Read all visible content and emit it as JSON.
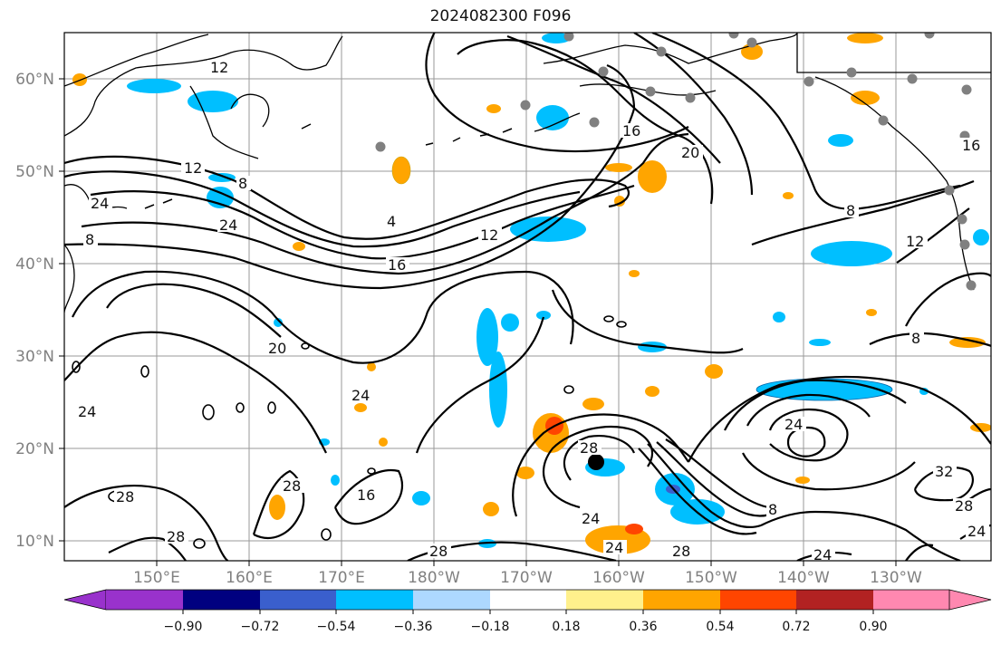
{
  "title": "2024082300 F096",
  "map": {
    "lat_labels": [
      "60°N",
      "50°N",
      "40°N",
      "30°N",
      "20°N",
      "10°N"
    ],
    "lon_labels": [
      "150°E",
      "160°E",
      "170°E",
      "180°W",
      "170°W",
      "160°W",
      "150°W",
      "140°W",
      "130°W"
    ],
    "contour_labels": [
      "12",
      "12",
      "8",
      "24",
      "24",
      "8",
      "4",
      "12",
      "16",
      "16",
      "20",
      "8",
      "12",
      "16",
      "8",
      "20",
      "24",
      "24",
      "28",
      "28",
      "28",
      "16",
      "28",
      "24",
      "24",
      "28",
      "24",
      "8",
      "32",
      "28",
      "24",
      "24",
      "28"
    ],
    "storm_marker": "tropical-cyclone-center"
  },
  "colorbar": {
    "tick_labels": [
      "−0.90",
      "−0.72",
      "−0.54",
      "−0.36",
      "−0.18",
      "0.18",
      "0.36",
      "0.54",
      "0.72",
      "0.90"
    ],
    "colors": [
      "#9932cc",
      "#000080",
      "#3a5fcd",
      "#00bfff",
      "#add8ff",
      "#ffffff",
      "#fff08c",
      "#ffa500",
      "#ff4500",
      "#b22222",
      "#ff88b0"
    ]
  }
}
